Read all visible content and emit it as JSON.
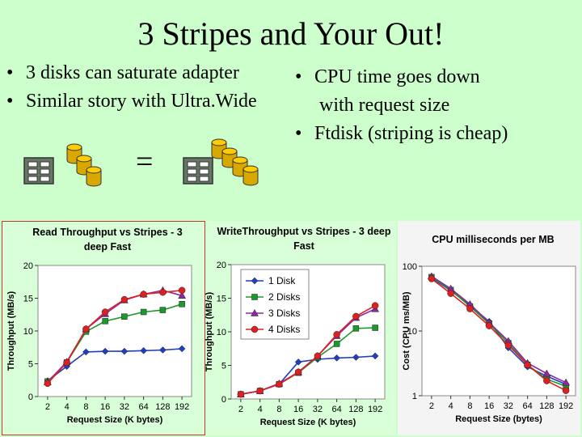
{
  "slide": {
    "title": "3 Stripes and Your Out!",
    "left_bullets": [
      "3 disks can saturate adapter",
      "Similar story with Ultra.Wide"
    ],
    "right_bullets": [
      "CPU time goes down",
      "with request size",
      "Ftdisk (striping is cheap)"
    ],
    "equals": "=",
    "bullet_char": "•"
  },
  "colors": {
    "background": "#ccffcc",
    "disk": "#ffcc00",
    "series": [
      "#1f3fbf",
      "#1a9a2a",
      "#8a2aa0",
      "#e02020"
    ]
  },
  "chart_data": [
    {
      "type": "line",
      "title": "Read Throughput vs Stripes - 3 deep Fast",
      "xlabel": "Request Size (K bytes)",
      "ylabel": "Throughput (MB/s)",
      "categories": [
        "2",
        "4",
        "8",
        "16",
        "32",
        "64",
        "128",
        "192"
      ],
      "ylim": [
        0,
        20
      ],
      "yticks": [
        0,
        5,
        10,
        15,
        20
      ],
      "series": [
        {
          "values": [
            2.4,
            4.6,
            6.8,
            6.9,
            6.9,
            7.0,
            7.1,
            7.3
          ]
        },
        {
          "values": [
            2.3,
            5.2,
            9.9,
            11.5,
            12.2,
            12.9,
            13.2,
            14.1
          ]
        },
        {
          "values": [
            2.2,
            5.3,
            10.3,
            12.6,
            14.7,
            15.6,
            16.2,
            15.4
          ]
        },
        {
          "values": [
            2.0,
            5.2,
            10.3,
            12.9,
            14.8,
            15.6,
            15.9,
            16.2
          ]
        }
      ]
    },
    {
      "type": "line",
      "title": "WriteThroughput vs Stripes - 3 deep Fast",
      "xlabel": "Request Size (K bytes)",
      "ylabel": "Throughput (MB/s)",
      "categories": [
        "2",
        "4",
        "8",
        "16",
        "32",
        "64",
        "128",
        "192"
      ],
      "ylim": [
        0,
        20
      ],
      "yticks": [
        0,
        5,
        10,
        15,
        20
      ],
      "legend_position": "top-left",
      "series": [
        {
          "name": "1 Disk",
          "values": [
            0.7,
            1.2,
            2.2,
            5.5,
            5.9,
            6.1,
            6.2,
            6.4
          ]
        },
        {
          "name": "2 Disks",
          "values": [
            0.7,
            1.2,
            2.2,
            3.9,
            6.2,
            8.2,
            10.5,
            10.6
          ]
        },
        {
          "name": "3 Disks",
          "values": [
            0.7,
            1.2,
            2.3,
            4.0,
            6.4,
            9.4,
            12.1,
            13.4
          ]
        },
        {
          "name": "4 Disks",
          "values": [
            0.7,
            1.2,
            2.2,
            4.0,
            6.4,
            9.6,
            12.3,
            13.9
          ]
        }
      ]
    },
    {
      "type": "line",
      "title": "CPU milliseconds per MB",
      "xlabel": "Request Size (bytes)",
      "ylabel": "Cost (CPU ms/MB)",
      "categories": [
        "2",
        "4",
        "8",
        "16",
        "32",
        "64",
        "128",
        "192"
      ],
      "ylim": [
        1,
        100
      ],
      "log_y": true,
      "yticks": [
        "100",
        "10",
        "1"
      ],
      "series": [
        {
          "values": [
            66,
            42,
            25,
            14,
            5.5,
            2.8,
            2.0,
            1.5
          ]
        },
        {
          "values": [
            68,
            43,
            24,
            13,
            6.5,
            3.0,
            1.8,
            1.4
          ]
        },
        {
          "values": [
            70,
            45,
            26,
            13.5,
            7.0,
            3.2,
            2.2,
            1.6
          ]
        },
        {
          "values": [
            64,
            38,
            22,
            12,
            6.0,
            3.0,
            1.7,
            1.2
          ]
        }
      ]
    }
  ]
}
